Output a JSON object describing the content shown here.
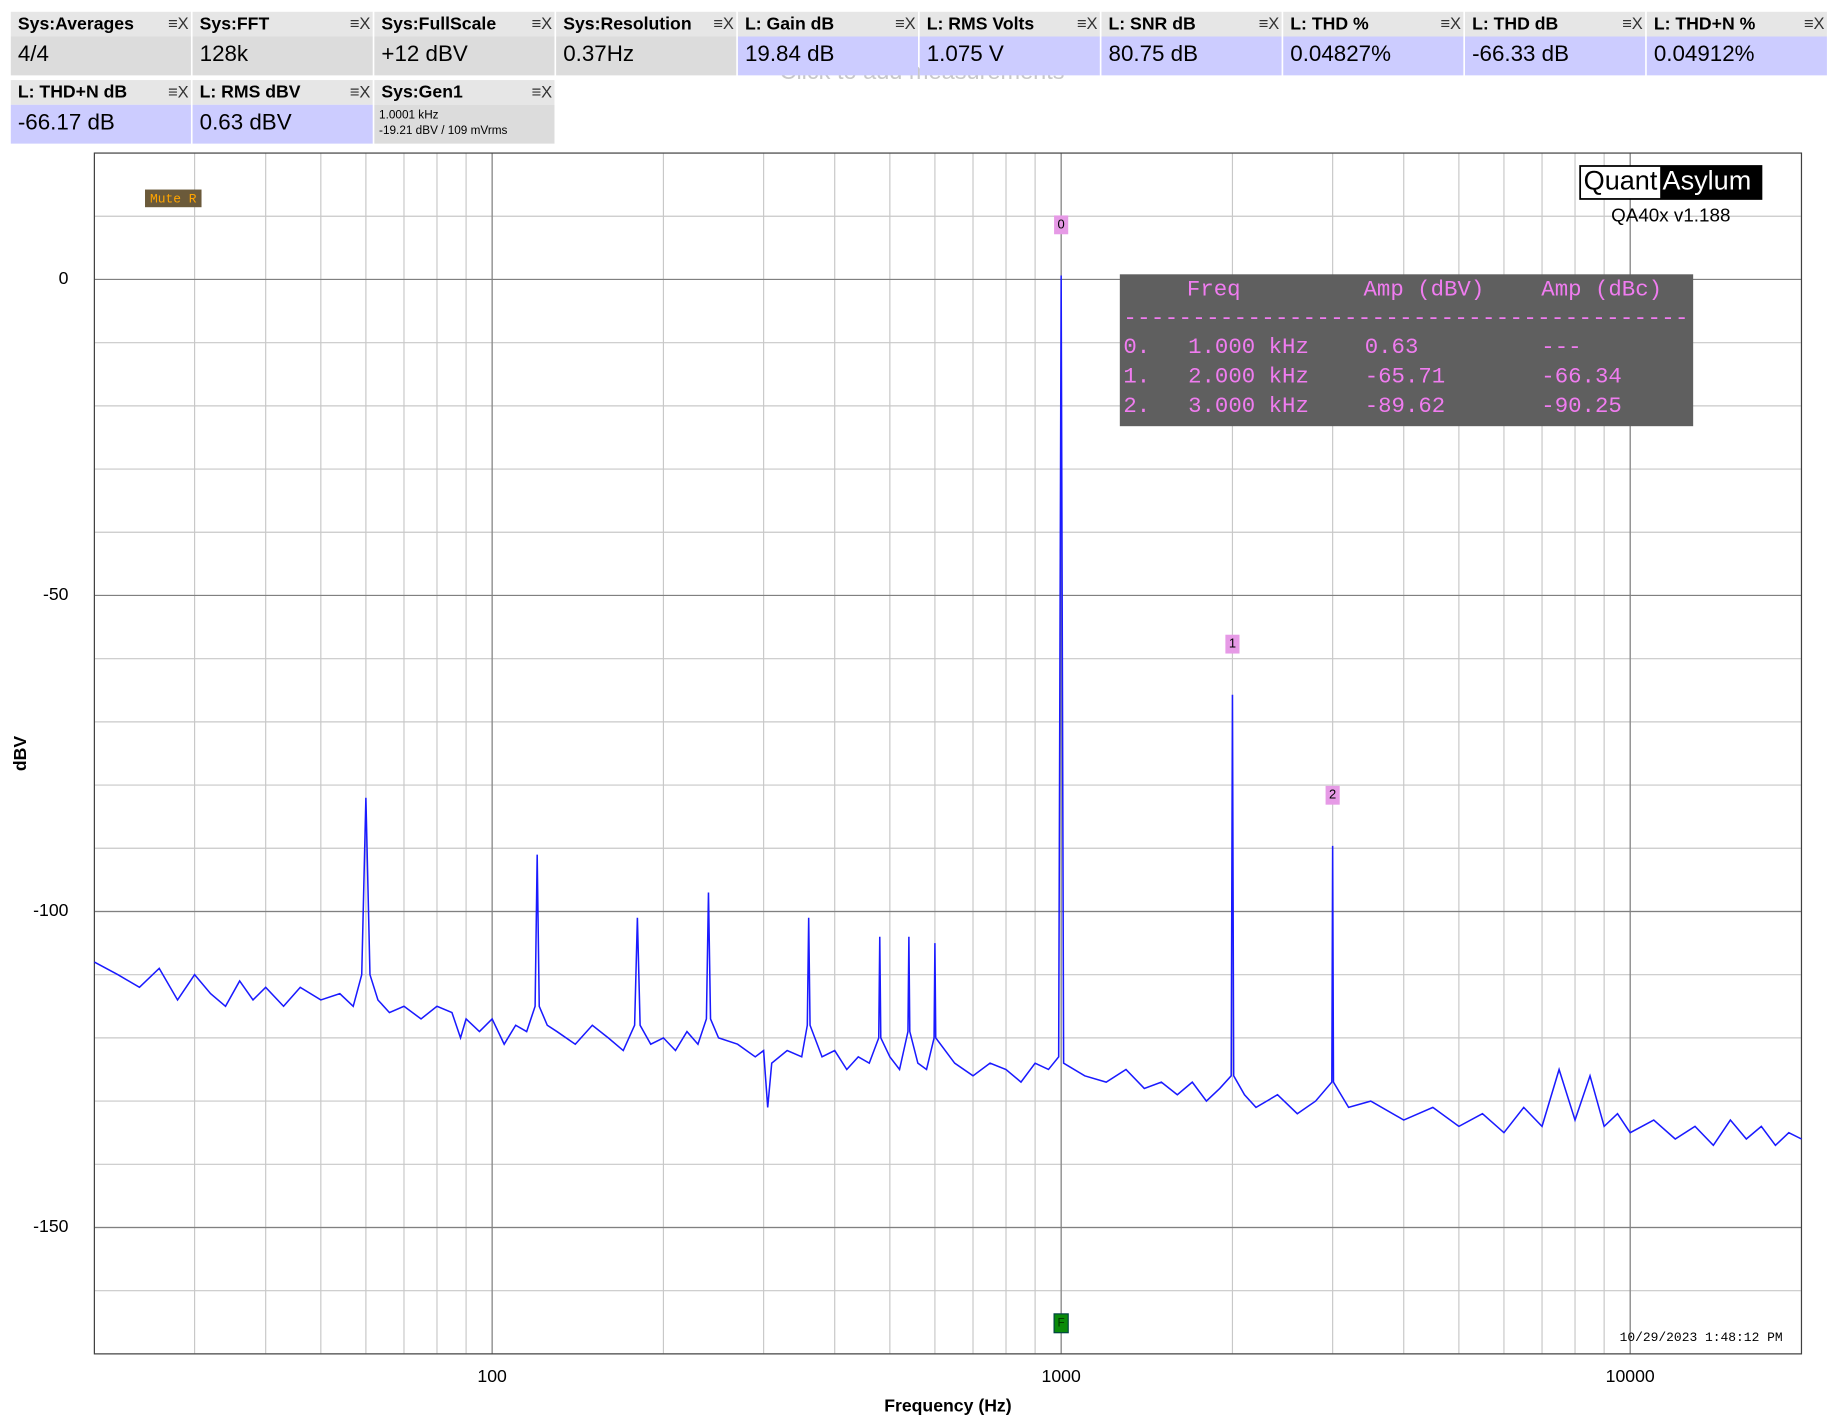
{
  "measurements": [
    {
      "title": "Sys:Averages",
      "value": "4/4",
      "color": "#dcdcdc"
    },
    {
      "title": "Sys:FFT",
      "value": "128k",
      "color": "#dcdcdc"
    },
    {
      "title": "Sys:FullScale",
      "value": "+12 dBV",
      "color": "#dcdcdc"
    },
    {
      "title": "Sys:Resolution",
      "value": "0.37Hz",
      "color": "#dcdcdc"
    },
    {
      "title": "L: Gain dB",
      "value": "19.84 dB",
      "color": "#ccccff"
    },
    {
      "title": "L: RMS Volts",
      "value": "1.075 V",
      "color": "#ccccff"
    },
    {
      "title": "L: SNR dB",
      "value": "80.75 dB",
      "color": "#ccccff"
    },
    {
      "title": "L: THD %",
      "value": "0.04827%",
      "color": "#ccccff"
    },
    {
      "title": "L: THD dB",
      "value": "-66.33 dB",
      "color": "#ccccff"
    },
    {
      "title": "L: THD+N %",
      "value": "0.04912%",
      "color": "#ccccff"
    },
    {
      "title": "L: THD+N dB",
      "value": "-66.17 dB",
      "color": "#ccccff"
    },
    {
      "title": "L: RMS dBV",
      "value": "0.63 dBV",
      "color": "#ccccff"
    },
    {
      "title": "Sys:Gen1",
      "value_lines": [
        "1.0001 kHz",
        "-19.21 dBV  / 109 mVrms"
      ],
      "color": "#dcdcdc"
    }
  ],
  "box_icon": "≡X",
  "add_hint": "Click to add measurements",
  "logo": {
    "left": "Quant",
    "right": "Asylum",
    "version": "QA40x v1.188"
  },
  "mute_label": "Mute R",
  "timestamp": "10/29/2023 1:48:12 PM",
  "peak_table": {
    "header": [
      "Freq",
      "Amp (dBV)",
      "Amp (dBc)"
    ],
    "rule": "-----------------------------------------",
    "rows": [
      [
        "0.",
        "1.000 kHz",
        "0.63",
        "---"
      ],
      [
        "1.",
        "2.000 kHz",
        "-65.71",
        "-66.34"
      ],
      [
        "2.",
        "3.000 kHz",
        "-89.62",
        "-90.25"
      ]
    ]
  },
  "chart_data": {
    "type": "line",
    "x_label": "Frequency (Hz)",
    "y_label": "dBV",
    "log_x": true,
    "grid": true,
    "xlim": [
      20,
      20000
    ],
    "ylim": [
      -170,
      20
    ],
    "xticks": [
      100,
      1000,
      10000
    ],
    "yticks": [
      0,
      -50,
      -100,
      -150
    ],
    "xgrid": [
      20,
      30,
      40,
      50,
      60,
      70,
      80,
      90,
      100,
      200,
      300,
      400,
      500,
      600,
      700,
      800,
      900,
      1000,
      2000,
      3000,
      4000,
      5000,
      6000,
      7000,
      8000,
      9000,
      10000,
      20000
    ],
    "ygrid": [
      -170,
      -160,
      -150,
      -140,
      -130,
      -120,
      -110,
      -100,
      -90,
      -80,
      -70,
      -60,
      -50,
      -40,
      -30,
      -20,
      -10,
      0,
      10,
      20
    ],
    "markers": [
      {
        "label": "0",
        "x": 1000
      },
      {
        "label": "1",
        "x": 2000
      },
      {
        "label": "2",
        "x": 3000
      }
    ],
    "freq_marker": {
      "label": "F",
      "x": 1000
    },
    "x": [
      20,
      22,
      24,
      26,
      28,
      30,
      32,
      34,
      36,
      38,
      40,
      43,
      46,
      50,
      54,
      57,
      59,
      60,
      61,
      63,
      66,
      70,
      75,
      80,
      85,
      88,
      90,
      95,
      100,
      105,
      110,
      115,
      119,
      120,
      121,
      125,
      130,
      140,
      150,
      160,
      170,
      178,
      180,
      182,
      190,
      200,
      210,
      220,
      230,
      238,
      240,
      242,
      250,
      270,
      290,
      300,
      305,
      310,
      330,
      350,
      358,
      360,
      362,
      380,
      400,
      420,
      440,
      460,
      478,
      480,
      482,
      500,
      520,
      538,
      540,
      542,
      560,
      580,
      598,
      600,
      602,
      650,
      700,
      750,
      800,
      850,
      900,
      950,
      990,
      1000,
      1010,
      1100,
      1200,
      1300,
      1400,
      1500,
      1600,
      1700,
      1800,
      1900,
      1990,
      2000,
      2010,
      2100,
      2200,
      2400,
      2600,
      2800,
      2990,
      3000,
      3010,
      3200,
      3500,
      4000,
      4500,
      5000,
      5500,
      6000,
      6500,
      7000,
      7500,
      8000,
      8500,
      9000,
      9500,
      10000,
      11000,
      12000,
      13000,
      14000,
      15000,
      16000,
      17000,
      18000,
      19000,
      20000
    ],
    "series": [
      {
        "color": "#1a1aff",
        "values": [
          -108,
          -110,
          -112,
          -109,
          -114,
          -110,
          -113,
          -115,
          -111,
          -114,
          -112,
          -115,
          -112,
          -114,
          -113,
          -115,
          -110,
          -82,
          -110,
          -114,
          -116,
          -115,
          -117,
          -115,
          -116,
          -120,
          -117,
          -119,
          -117,
          -121,
          -118,
          -119,
          -115,
          -91,
          -115,
          -118,
          -119,
          -121,
          -118,
          -120,
          -122,
          -118,
          -101,
          -118,
          -121,
          -120,
          -122,
          -119,
          -121,
          -117,
          -97,
          -117,
          -120,
          -121,
          -123,
          -122,
          -131,
          -124,
          -122,
          -123,
          -118,
          -101,
          -118,
          -123,
          -122,
          -125,
          -123,
          -124,
          -120,
          -104,
          -120,
          -123,
          -125,
          -119,
          -104,
          -119,
          -124,
          -125,
          -120,
          -105,
          -120,
          -124,
          -126,
          -124,
          -125,
          -127,
          -124,
          -125,
          -123,
          0.63,
          -124,
          -126,
          -127,
          -125,
          -128,
          -127,
          -129,
          -127,
          -130,
          -128,
          -126,
          -65.71,
          -126,
          -129,
          -131,
          -129,
          -132,
          -130,
          -127,
          -89.62,
          -127,
          -131,
          -130,
          -133,
          -131,
          -134,
          -132,
          -135,
          -131,
          -134,
          -125,
          -133,
          -126,
          -134,
          -132,
          -135,
          -133,
          -136,
          -134,
          -137,
          -133,
          -136,
          -134,
          -137,
          -135,
          -136
        ]
      }
    ]
  }
}
